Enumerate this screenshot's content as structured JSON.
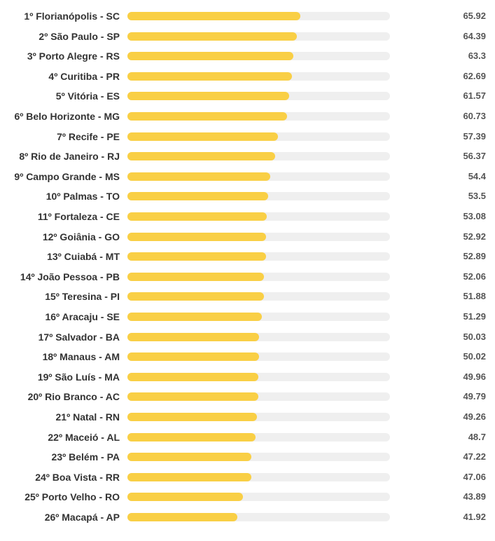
{
  "chart_data": {
    "type": "bar",
    "orientation": "horizontal",
    "xlim": [
      0,
      100
    ],
    "bar_color": "#f9cf45",
    "track_color": "#efefef",
    "categories": [
      "1º Florianópolis - SC",
      "2º São Paulo - SP",
      "3º Porto Alegre - RS",
      "4º Curitiba - PR",
      "5º Vitória - ES",
      "6º Belo Horizonte - MG",
      "7º Recife - PE",
      "8º Rio de Janeiro - RJ",
      "9º Campo Grande - MS",
      "10º Palmas - TO",
      "11º Fortaleza - CE",
      "12º Goiânia - GO",
      "13º Cuiabá - MT",
      "14º João Pessoa - PB",
      "15º Teresina - PI",
      "16º Aracaju - SE",
      "17º Salvador - BA",
      "18º Manaus - AM",
      "19º São Luís - MA",
      "20º Rio Branco - AC",
      "21º Natal - RN",
      "22º Maceió - AL",
      "23º Belém - PA",
      "24º Boa Vista - RR",
      "25º Porto Velho - RO",
      "26º Macapá - AP"
    ],
    "values": [
      65.92,
      64.39,
      63.3,
      62.69,
      61.57,
      60.73,
      57.39,
      56.37,
      54.4,
      53.5,
      53.08,
      52.92,
      52.89,
      52.06,
      51.88,
      51.29,
      50.03,
      50.02,
      49.96,
      49.79,
      49.26,
      48.7,
      47.22,
      47.06,
      43.89,
      41.92
    ],
    "value_labels": [
      "65.92",
      "64.39",
      "63.3",
      "62.69",
      "61.57",
      "60.73",
      "57.39",
      "56.37",
      "54.4",
      "53.5",
      "53.08",
      "52.92",
      "52.89",
      "52.06",
      "51.88",
      "51.29",
      "50.03",
      "50.02",
      "49.96",
      "49.79",
      "49.26",
      "48.7",
      "47.22",
      "47.06",
      "43.89",
      "41.92"
    ]
  }
}
